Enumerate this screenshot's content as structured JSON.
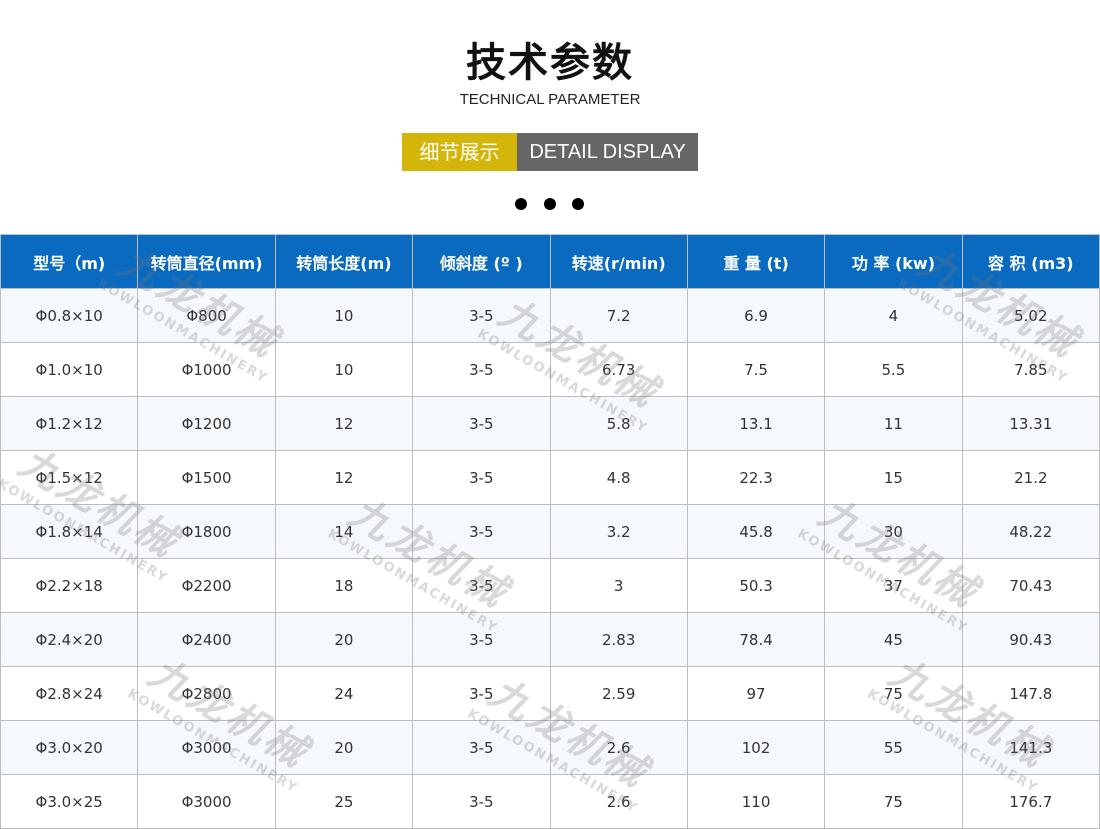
{
  "header": {
    "title": "技术参数",
    "subtitle": "TECHNICAL PARAMETER",
    "badge_cn": "细节展示",
    "badge_en": "DETAIL DISPLAY"
  },
  "watermark": {
    "cn": "九龙机械",
    "en": "KOWLOONMACHINERY"
  },
  "colors": {
    "header_bg": "#0a6ac0",
    "badge_yellow": "#d4b60a",
    "badge_gray": "#666666"
  },
  "table": {
    "columns": [
      "型号（m)",
      "转筒直径(mm)",
      "转筒长度(m)",
      "倾斜度 (º )",
      "转速(r/min)",
      "重 量 (t)",
      "功 率 (kw)",
      "容 积 (m3)"
    ],
    "rows": [
      [
        "Φ0.8×10",
        "Φ800",
        "10",
        "3-5",
        "7.2",
        "6.9",
        "4",
        "5.02"
      ],
      [
        "Φ1.0×10",
        "Φ1000",
        "10",
        "3-5",
        "6.73",
        "7.5",
        "5.5",
        "7.85"
      ],
      [
        "Φ1.2×12",
        "Φ1200",
        "12",
        "3-5",
        "5.8",
        "13.1",
        "11",
        "13.31"
      ],
      [
        "Φ1.5×12",
        "Φ1500",
        "12",
        "3-5",
        "4.8",
        "22.3",
        "15",
        "21.2"
      ],
      [
        "Φ1.8×14",
        "Φ1800",
        "14",
        "3-5",
        "3.2",
        "45.8",
        "30",
        "48.22"
      ],
      [
        "Φ2.2×18",
        "Φ2200",
        "18",
        "3-5",
        "3",
        "50.3",
        "37",
        "70.43"
      ],
      [
        "Φ2.4×20",
        "Φ2400",
        "20",
        "3-5",
        "2.83",
        "78.4",
        "45",
        "90.43"
      ],
      [
        "Φ2.8×24",
        "Φ2800",
        "24",
        "3-5",
        "2.59",
        "97",
        "75",
        "147.8"
      ],
      [
        "Φ3.0×20",
        "Φ3000",
        "20",
        "3-5",
        "2.6",
        "102",
        "55",
        "141.3"
      ],
      [
        "Φ3.0×25",
        "Φ3000",
        "25",
        "3-5",
        "2.6",
        "110",
        "75",
        "176.7"
      ]
    ]
  }
}
